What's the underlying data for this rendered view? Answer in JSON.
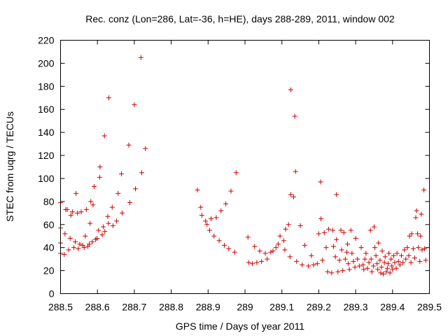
{
  "chart_data": {
    "type": "scatter",
    "title": "Rec. conz (Lon=286, Lat=-36, h=HE), days 288-289, 2011, window 002",
    "xlabel": "GPS time / Days of year 2011",
    "ylabel": "STEC from uqrg / TECUs",
    "xlim": [
      288.5,
      289.5
    ],
    "ylim": [
      0,
      220
    ],
    "x_ticks": [
      "288.5",
      "288.6",
      "288.7",
      "288.8",
      "288.9",
      "289",
      "289.1",
      "289.2",
      "289.3",
      "289.4",
      "289.5"
    ],
    "y_ticks": [
      "0",
      "20",
      "40",
      "60",
      "80",
      "100",
      "120",
      "140",
      "160",
      "180",
      "200",
      "220"
    ],
    "grid": false,
    "marker": "+",
    "marker_color": "#cc0000",
    "series": [
      {
        "points": [
          [
            288.5,
            35
          ],
          [
            288.5,
            44
          ],
          [
            288.5,
            57
          ],
          [
            288.5,
            79
          ],
          [
            288.51,
            34
          ],
          [
            288.512,
            52
          ],
          [
            288.514,
            73
          ],
          [
            288.518,
            73
          ],
          [
            288.522,
            38
          ],
          [
            288.526,
            48
          ],
          [
            288.528,
            68
          ],
          [
            288.532,
            71
          ],
          [
            288.536,
            40
          ],
          [
            288.54,
            45
          ],
          [
            288.542,
            87
          ],
          [
            288.546,
            70
          ],
          [
            288.548,
            39
          ],
          [
            288.552,
            43
          ],
          [
            288.556,
            71
          ],
          [
            288.56,
            42
          ],
          [
            288.564,
            40
          ],
          [
            288.567,
            50
          ],
          [
            288.57,
            73
          ],
          [
            288.574,
            41
          ],
          [
            288.578,
            43
          ],
          [
            288.58,
            61
          ],
          [
            288.582,
            80
          ],
          [
            288.586,
            45
          ],
          [
            288.588,
            77
          ],
          [
            288.591,
            93
          ],
          [
            288.595,
            47
          ],
          [
            288.599,
            48
          ],
          [
            288.603,
            55
          ],
          [
            288.606,
            101
          ],
          [
            288.607,
            110
          ],
          [
            288.613,
            51
          ],
          [
            288.616,
            58
          ],
          [
            288.619,
            137
          ],
          [
            288.62,
            54
          ],
          [
            288.628,
            67
          ],
          [
            288.63,
            61
          ],
          [
            288.631,
            170
          ],
          [
            288.64,
            75
          ],
          [
            288.642,
            59
          ],
          [
            288.652,
            63
          ],
          [
            288.656,
            87
          ],
          [
            288.665,
            104
          ],
          [
            288.667,
            70
          ],
          [
            288.685,
            129
          ],
          [
            288.688,
            79
          ],
          [
            288.7,
            164
          ],
          [
            288.703,
            91
          ],
          [
            288.718,
            205
          ],
          [
            288.72,
            105
          ],
          [
            288.73,
            126
          ],
          [
            288.871,
            90
          ],
          [
            288.88,
            75
          ],
          [
            288.883,
            68
          ],
          [
            288.893,
            63
          ],
          [
            288.897,
            60
          ],
          [
            288.904,
            55
          ],
          [
            288.908,
            65
          ],
          [
            288.916,
            50
          ],
          [
            288.922,
            66
          ],
          [
            288.93,
            46
          ],
          [
            288.935,
            72
          ],
          [
            288.944,
            42
          ],
          [
            288.948,
            78
          ],
          [
            288.956,
            39
          ],
          [
            288.962,
            89
          ],
          [
            288.972,
            36
          ],
          [
            288.976,
            105
          ],
          [
            289.008,
            49
          ],
          [
            289.01,
            27
          ],
          [
            289.02,
            26
          ],
          [
            289.026,
            41
          ],
          [
            289.032,
            27
          ],
          [
            289.04,
            37
          ],
          [
            289.045,
            28
          ],
          [
            289.055,
            35
          ],
          [
            289.06,
            30
          ],
          [
            289.07,
            36
          ],
          [
            289.076,
            37
          ],
          [
            289.084,
            40
          ],
          [
            289.09,
            43
          ],
          [
            289.095,
            50
          ],
          [
            289.105,
            46
          ],
          [
            289.108,
            38
          ],
          [
            289.11,
            56
          ],
          [
            289.118,
            60
          ],
          [
            289.122,
            32
          ],
          [
            289.124,
            86
          ],
          [
            289.124,
            177
          ],
          [
            289.132,
            84
          ],
          [
            289.135,
            154
          ],
          [
            289.137,
            106
          ],
          [
            289.14,
            28
          ],
          [
            289.15,
            59
          ],
          [
            289.155,
            25
          ],
          [
            289.162,
            42
          ],
          [
            289.172,
            24
          ],
          [
            289.18,
            33
          ],
          [
            289.186,
            25
          ],
          [
            289.196,
            26
          ],
          [
            289.2,
            52
          ],
          [
            289.205,
            97
          ],
          [
            289.206,
            65
          ],
          [
            289.21,
            29
          ],
          [
            289.215,
            53
          ],
          [
            289.22,
            40
          ],
          [
            289.224,
            19
          ],
          [
            289.227,
            56
          ],
          [
            289.235,
            18
          ],
          [
            289.238,
            55
          ],
          [
            289.24,
            41
          ],
          [
            289.245,
            32
          ],
          [
            289.248,
            86
          ],
          [
            289.248,
            47
          ],
          [
            289.252,
            19
          ],
          [
            289.256,
            29
          ],
          [
            289.26,
            55
          ],
          [
            289.262,
            38
          ],
          [
            289.265,
            20
          ],
          [
            289.268,
            53
          ],
          [
            289.272,
            30
          ],
          [
            289.276,
            36
          ],
          [
            289.278,
            43
          ],
          [
            289.28,
            26
          ],
          [
            289.283,
            21
          ],
          [
            289.287,
            55
          ],
          [
            289.29,
            35
          ],
          [
            289.294,
            28
          ],
          [
            289.298,
            23
          ],
          [
            289.3,
            48
          ],
          [
            289.305,
            30
          ],
          [
            289.31,
            24
          ],
          [
            289.315,
            40
          ],
          [
            289.32,
            25
          ],
          [
            289.322,
            21
          ],
          [
            289.325,
            30
          ],
          [
            289.328,
            35
          ],
          [
            289.332,
            22
          ],
          [
            289.336,
            27
          ],
          [
            289.34,
            55
          ],
          [
            289.342,
            30
          ],
          [
            289.344,
            19
          ],
          [
            289.348,
            24
          ],
          [
            289.35,
            58
          ],
          [
            289.352,
            40
          ],
          [
            289.355,
            33
          ],
          [
            289.358,
            26
          ],
          [
            289.36,
            21
          ],
          [
            289.362,
            44
          ],
          [
            289.366,
            29
          ],
          [
            289.368,
            18
          ],
          [
            289.37,
            23
          ],
          [
            289.372,
            37
          ],
          [
            289.375,
            17
          ],
          [
            289.378,
            27
          ],
          [
            289.38,
            32
          ],
          [
            289.383,
            19
          ],
          [
            289.386,
            22
          ],
          [
            289.388,
            26
          ],
          [
            289.39,
            35
          ],
          [
            289.393,
            18
          ],
          [
            289.396,
            30
          ],
          [
            289.398,
            24
          ],
          [
            289.4,
            21
          ],
          [
            289.403,
            33
          ],
          [
            289.406,
            27
          ],
          [
            289.41,
            22
          ],
          [
            289.412,
            35
          ],
          [
            289.416,
            28
          ],
          [
            289.42,
            25
          ],
          [
            289.424,
            33
          ],
          [
            289.428,
            27
          ],
          [
            289.432,
            38
          ],
          [
            289.436,
            30
          ],
          [
            289.44,
            40
          ],
          [
            289.444,
            33
          ],
          [
            289.446,
            50
          ],
          [
            289.45,
            27
          ],
          [
            289.452,
            52
          ],
          [
            289.456,
            39
          ],
          [
            289.46,
            31
          ],
          [
            289.463,
            66
          ],
          [
            289.465,
            72
          ],
          [
            289.468,
            52
          ],
          [
            289.47,
            40
          ],
          [
            289.474,
            28
          ],
          [
            289.476,
            50
          ],
          [
            289.478,
            69
          ],
          [
            289.48,
            38
          ],
          [
            289.485,
            90
          ],
          [
            289.487,
            39
          ],
          [
            289.49,
            29
          ]
        ]
      }
    ]
  }
}
